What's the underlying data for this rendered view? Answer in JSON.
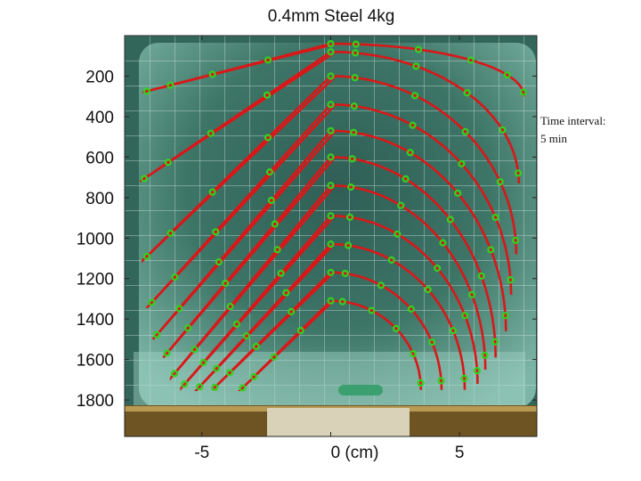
{
  "chart_data": {
    "type": "line",
    "title": "0.4mm Steel 4kg",
    "xlabel": "",
    "ylabel": "",
    "xlim": [
      -8,
      8
    ],
    "ylim": [
      1980,
      0
    ],
    "y_inverted": true,
    "grid": false,
    "x_ticks": [
      {
        "value": -5,
        "label": "-5"
      },
      {
        "value": 0,
        "label": "0 (cm)"
      },
      {
        "value": 5,
        "label": "5"
      }
    ],
    "y_ticks": [
      {
        "value": 200,
        "label": "200"
      },
      {
        "value": 400,
        "label": "400"
      },
      {
        "value": 600,
        "label": "600"
      },
      {
        "value": 800,
        "label": "800"
      },
      {
        "value": 1000,
        "label": "1000"
      },
      {
        "value": 1200,
        "label": "1200"
      },
      {
        "value": 1400,
        "label": "1400"
      },
      {
        "value": 1600,
        "label": "1600"
      },
      {
        "value": 1800,
        "label": "1800"
      }
    ],
    "series": [
      {
        "top_y": 1310,
        "left_x": -3.5,
        "left_bottom_y": 1750,
        "right_x": 3.5,
        "right_bottom_y": 1750
      },
      {
        "top_y": 1170,
        "left_x": -4.6,
        "left_bottom_y": 1750,
        "right_x": 4.3,
        "right_bottom_y": 1750
      },
      {
        "top_y": 1030,
        "left_x": -5.2,
        "left_bottom_y": 1750,
        "right_x": 5.2,
        "right_bottom_y": 1750
      },
      {
        "top_y": 890,
        "left_x": -5.8,
        "left_bottom_y": 1740,
        "right_x": 5.7,
        "right_bottom_y": 1720
      },
      {
        "top_y": 740,
        "left_x": -6.2,
        "left_bottom_y": 1690,
        "right_x": 6.0,
        "right_bottom_y": 1650
      },
      {
        "top_y": 600,
        "left_x": -6.5,
        "left_bottom_y": 1590,
        "right_x": 6.4,
        "right_bottom_y": 1590
      },
      {
        "top_y": 470,
        "left_x": -6.9,
        "left_bottom_y": 1500,
        "right_x": 6.8,
        "right_bottom_y": 1460
      },
      {
        "top_y": 340,
        "left_x": -7.1,
        "left_bottom_y": 1340,
        "right_x": 7.0,
        "right_bottom_y": 1280
      },
      {
        "top_y": 200,
        "left_x": -7.3,
        "left_bottom_y": 1110,
        "right_x": 7.2,
        "right_bottom_y": 1080
      },
      {
        "top_y": 80,
        "left_x": -7.4,
        "left_bottom_y": 720,
        "right_x": 7.3,
        "right_bottom_y": 730
      },
      {
        "top_y": 40,
        "left_x": -7.3,
        "left_bottom_y": 280,
        "right_x": 7.5,
        "right_bottom_y": 300
      }
    ],
    "marker_color": "#32d21e",
    "line_color": "#d81818"
  },
  "annotation": "Time interval:\n5 min",
  "colors": {
    "background_image": "#2e5f54",
    "ice": "#6fa89a",
    "frame_top": "#8a6a2a",
    "frame_bottom": "#7a5a20"
  }
}
